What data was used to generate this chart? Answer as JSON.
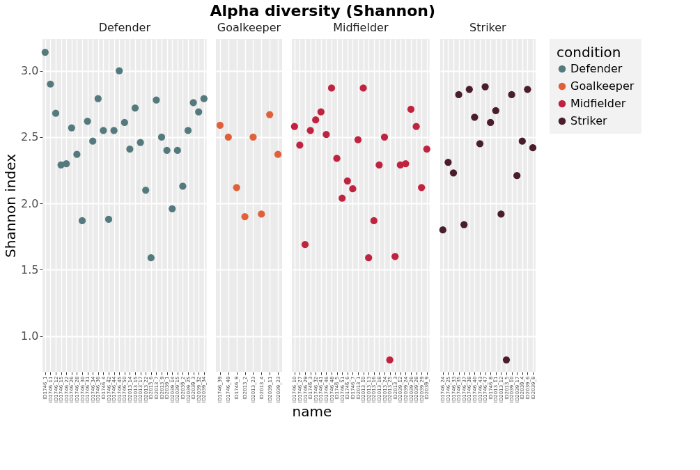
{
  "chart_data": [
    {
      "type": "scatter",
      "subtitle": "Defender",
      "ylabel": "Shannon index",
      "categories": [
        "ID1746_1",
        "ID1746_11",
        "ID1746_12",
        "ID1746_15",
        "ID1746_22",
        "ID1746_26",
        "ID1746_28",
        "ID1746_30",
        "ID1746_31",
        "ID1746_34",
        "ID1746_36",
        "ID1746_4",
        "ID1746_42",
        "ID1746_44",
        "ID1746_45",
        "ID1746_50",
        "ID2013_14",
        "ID2013_15",
        "ID2013_17",
        "ID2013_22",
        "ID2013_6",
        "ID2013_7",
        "ID2013_9",
        "ID2039_1",
        "ID2039_14",
        "ID2039_15",
        "ID2039_2",
        "ID2039_25",
        "ID2039_3",
        "ID2039_32",
        "ID2039_34"
      ],
      "series": [
        {
          "name": "Defender",
          "color": "#547a7d",
          "values": [
            3.14,
            2.9,
            2.68,
            2.29,
            2.3,
            2.57,
            2.37,
            1.87,
            2.62,
            2.47,
            2.79,
            2.55,
            1.88,
            2.55,
            3.0,
            2.61,
            2.41,
            2.72,
            2.46,
            2.1,
            1.59,
            2.78,
            2.5,
            2.4,
            1.96,
            2.4,
            2.13,
            2.55,
            2.76,
            2.69,
            2.79
          ]
        }
      ],
      "ylim": [
        0.73,
        3.24
      ],
      "yticks": [
        {
          "value": 1,
          "label": "1.0"
        },
        {
          "value": 1.5,
          "label": "1.5"
        },
        {
          "value": 2,
          "label": "2.0"
        },
        {
          "value": 2.5,
          "label": "2.5"
        },
        {
          "value": 3,
          "label": "3.0"
        }
      ],
      "grid": true,
      "marker": "circle"
    },
    {
      "type": "scatter",
      "title": "Alpha diversity (Shannon)",
      "subtitle": "Goalkeeper",
      "categories": [
        "ID1746_39",
        "ID1746_49",
        "ID1746_9",
        "ID2013_2",
        "ID2013_23",
        "ID2013_4",
        "ID2039_11",
        "ID2039_23"
      ],
      "series": [
        {
          "name": "Goalkeeper",
          "color": "#e0603a",
          "values": [
            2.59,
            2.5,
            2.12,
            1.9,
            2.5,
            1.92,
            2.67,
            2.37
          ]
        }
      ],
      "ylim": [
        0.73,
        3.24
      ],
      "yticks": [
        1,
        1.5,
        2,
        2.5,
        3
      ],
      "grid": true,
      "marker": "circle",
      "tick_labels": "x"
    },
    {
      "type": "scatter",
      "subtitle": "Midfielder",
      "xlabel": "name",
      "categories": [
        "ID1746_10",
        "ID1746_27",
        "ID1746_29",
        "ID1746_3",
        "ID1746_32",
        "ID1746_41",
        "ID1746_46",
        "ID1746_48",
        "ID1746_5",
        "ID1746_51",
        "ID1746_6",
        "ID1746_7",
        "ID2013_1",
        "ID2013_10",
        "ID2013_13",
        "ID2013_16",
        "ID2013_18",
        "ID2013_24",
        "ID2013_25",
        "ID2013_3",
        "ID2039_12",
        "ID2039_24",
        "ID2039_26",
        "ID2039_28",
        "ID2039_29",
        "ID2039_9"
      ],
      "series": [
        {
          "name": "Midfielder",
          "color": "#c0233f",
          "values": [
            2.58,
            2.44,
            1.69,
            2.55,
            2.63,
            2.69,
            2.52,
            2.87,
            2.34,
            2.04,
            2.17,
            2.11,
            2.48,
            2.87,
            1.59,
            1.87,
            2.29,
            2.5,
            0.82,
            1.6,
            2.29,
            2.3,
            2.71,
            2.58,
            2.12,
            2.41
          ]
        }
      ],
      "ylim": [
        0.73,
        3.24
      ],
      "yticks": [
        1,
        1.5,
        2,
        2.5,
        3
      ],
      "grid": true,
      "marker": "circle",
      "tick_labels": "x"
    },
    {
      "type": "scatter",
      "subtitle": "Striker",
      "legend": "right",
      "legend_title": "condition",
      "categories": [
        "ID1746_24",
        "ID1746_25",
        "ID1746_33",
        "ID1746_35",
        "ID1746_37",
        "ID1746_38",
        "ID1746_40",
        "ID1746_43",
        "ID1746_47",
        "ID1746_8",
        "ID2013_11",
        "ID2013_12",
        "ID2013_5",
        "ID2039_10",
        "ID2039_17",
        "ID2039_4",
        "ID2039_6",
        "ID2039_8"
      ],
      "series": [
        {
          "name": "Striker",
          "color": "#4a1c2e",
          "values": [
            1.8,
            2.31,
            2.23,
            2.82,
            1.84,
            2.86,
            2.65,
            2.45,
            2.88,
            2.61,
            2.7,
            1.92,
            0.82,
            2.82,
            2.21,
            2.47,
            2.86,
            2.42
          ]
        }
      ],
      "ylim": [
        0.73,
        3.24
      ],
      "yticks": [
        1,
        1.5,
        2,
        2.5,
        3
      ],
      "grid": true,
      "marker": "circle",
      "tick_labels": "x"
    }
  ]
}
